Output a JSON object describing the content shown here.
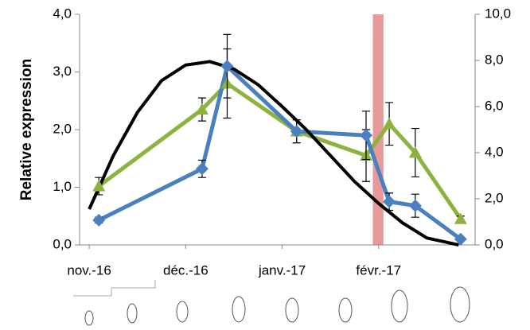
{
  "chart_data": {
    "type": "line",
    "y_label": "Relative expression",
    "x": [
      0.1,
      1.17,
      1.43,
      2.15,
      2.87,
      3.11,
      3.38,
      3.85
    ],
    "xlim": [
      -0.1,
      4.0
    ],
    "xticks": [
      {
        "value": 0,
        "label": "nov.-16"
      },
      {
        "value": 1,
        "label": "déc.-16"
      },
      {
        "value": 2,
        "label": "janv.-17"
      },
      {
        "value": 3,
        "label": "févr.-17"
      }
    ],
    "ylim": [
      0,
      4
    ],
    "yticks": [
      {
        "value": 0,
        "label": "0,0"
      },
      {
        "value": 1,
        "label": "1,0"
      },
      {
        "value": 2,
        "label": "2,0"
      },
      {
        "value": 3,
        "label": "3,0"
      },
      {
        "value": 4,
        "label": "4,0"
      }
    ],
    "y2lim": [
      0,
      10
    ],
    "y2ticks": [
      {
        "value": 0,
        "label": "0,0"
      },
      {
        "value": 2,
        "label": "2,0"
      },
      {
        "value": 4,
        "label": "4,0"
      },
      {
        "value": 6,
        "label": "6,0"
      },
      {
        "value": 8,
        "label": "8,0"
      },
      {
        "value": 10,
        "label": "10,0"
      }
    ],
    "series": [
      {
        "color": "#8db23f",
        "marker": "triangle",
        "values": [
          1.02,
          2.35,
          2.8,
          1.97,
          1.55,
          2.1,
          1.6,
          0.45
        ],
        "errors": [
          0.15,
          0.2,
          0.6,
          0.2,
          0.45,
          0.37,
          0.42,
          0.05
        ]
      },
      {
        "color": "#4a7fc0",
        "marker": "diamond",
        "values": [
          0.43,
          1.32,
          3.1,
          1.97,
          1.9,
          0.75,
          0.68,
          0.1
        ],
        "errors": [
          0.05,
          0.15,
          0.55,
          0.2,
          0.42,
          0.15,
          0.2,
          0.03
        ]
      }
    ],
    "trend": {
      "color": "#000000",
      "x": [
        0.0,
        0.25,
        0.5,
        0.75,
        1.0,
        1.25,
        1.5,
        1.75,
        2.0,
        2.25,
        2.5,
        2.75,
        3.0,
        3.25,
        3.5,
        3.83
      ],
      "values": [
        0.62,
        1.55,
        2.3,
        2.85,
        3.12,
        3.18,
        3.05,
        2.78,
        2.4,
        2.0,
        1.55,
        1.1,
        0.72,
        0.38,
        0.12,
        0.0
      ]
    },
    "band": {
      "color": "#e89a9a",
      "x": [
        2.94,
        3.05
      ]
    }
  }
}
